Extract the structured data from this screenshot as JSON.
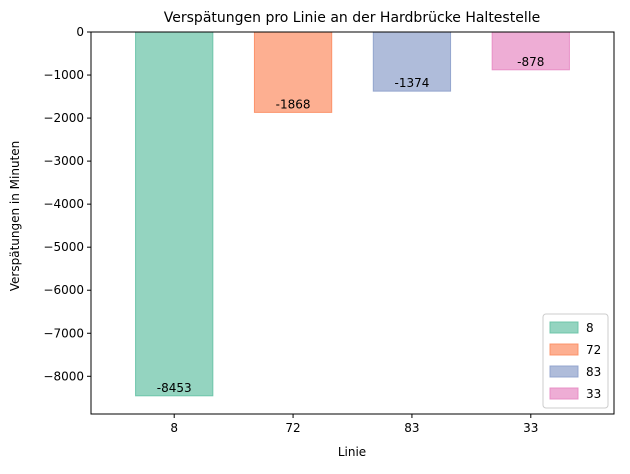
{
  "chart_data": {
    "type": "bar",
    "title": "Verspätungen pro Linie an der Hardbrücke Haltestelle",
    "xlabel": "Linie",
    "ylabel": "Verspätungen in Minuten",
    "categories": [
      "8",
      "72",
      "83",
      "33"
    ],
    "values": [
      -8453,
      -1868,
      -1374,
      -878
    ],
    "data_labels": [
      "-8453",
      "-1868",
      "-1374",
      "-878"
    ],
    "ylim": [
      -8876,
      0
    ],
    "yticks": [
      0,
      -1000,
      -2000,
      -3000,
      -4000,
      -5000,
      -6000,
      -7000,
      -8000
    ],
    "ytick_labels": [
      "0",
      "−1000",
      "−2000",
      "−3000",
      "−4000",
      "−5000",
      "−6000",
      "−7000",
      "−8000"
    ],
    "grid": false,
    "legend": {
      "placement": "bottom-right",
      "entries": [
        "8",
        "72",
        "83",
        "33"
      ]
    },
    "colors": [
      "#66c2a5",
      "#fc8d62",
      "#8da0cb",
      "#e78ac3"
    ],
    "bar_opacity": 0.7
  }
}
